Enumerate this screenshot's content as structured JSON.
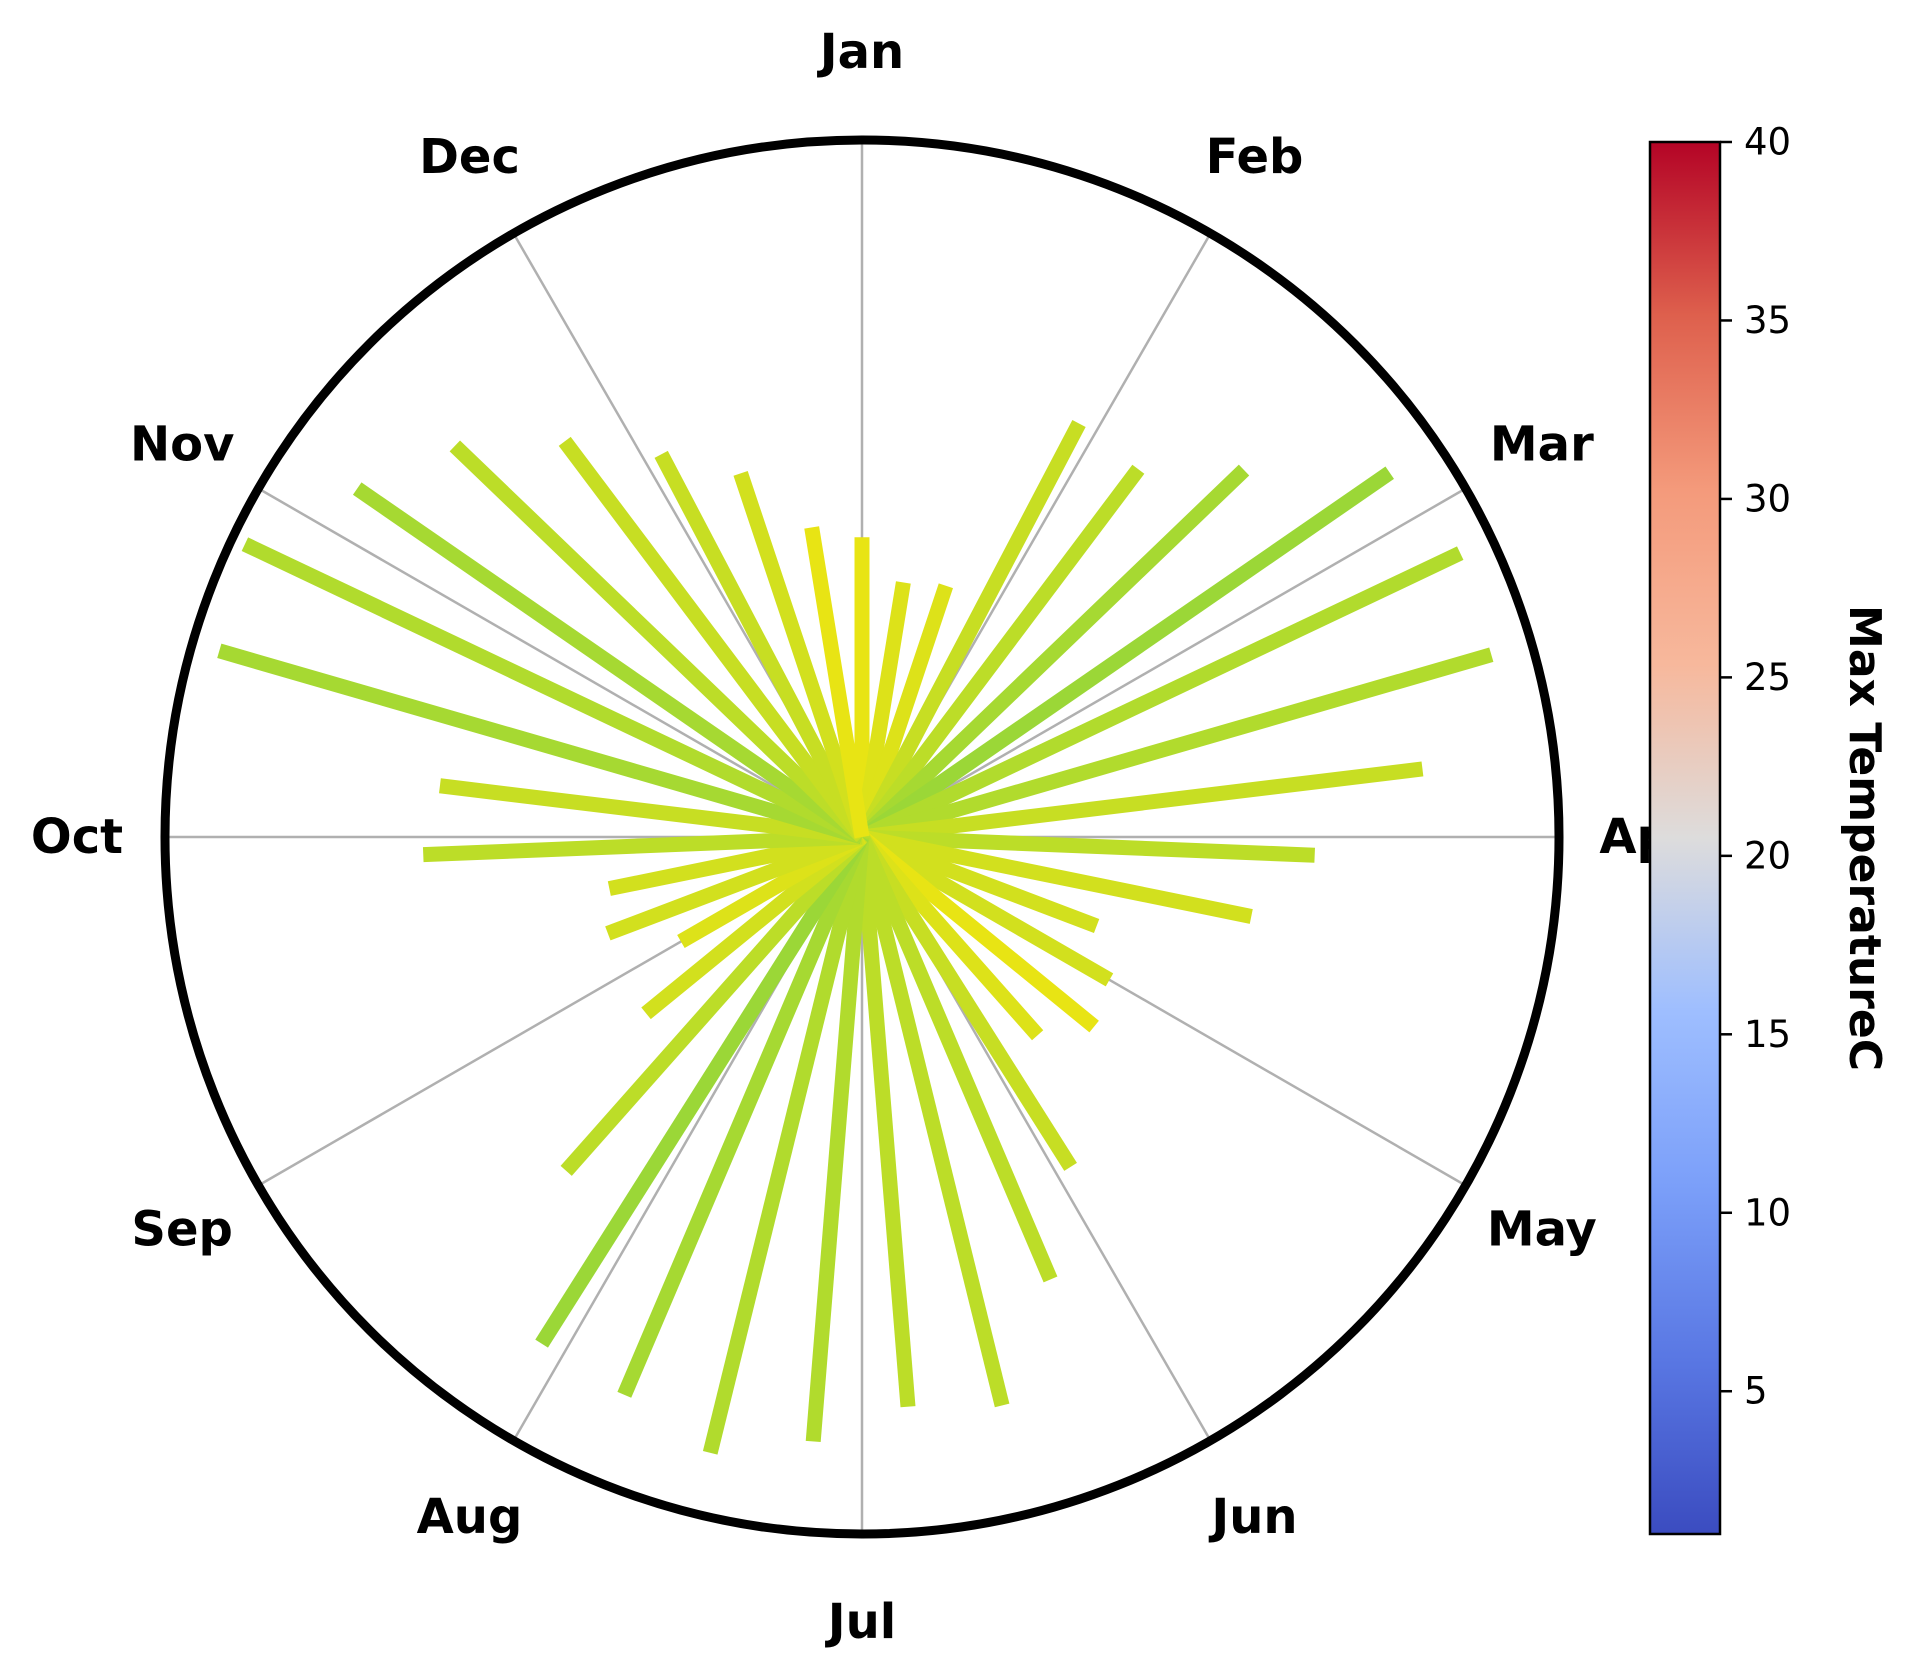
{
  "chart_data": {
    "type": "radial-bar",
    "theta_labels": [
      "Jan",
      "Feb",
      "Mar",
      "Apr",
      "May",
      "Jun",
      "Jul",
      "Aug",
      "Sep",
      "Oct",
      "Nov",
      "Dec"
    ],
    "direction": "clockwise",
    "theta_zero": "top",
    "radial_grid": false,
    "colorbar": {
      "label": "Max TemperatureC",
      "colormap": "coolwarm",
      "vmin": 1,
      "vmax": 40,
      "ticks": [
        5,
        10,
        15,
        20,
        25,
        30,
        35,
        40
      ]
    },
    "spokes": [
      {
        "r": 0.43,
        "t": 21
      },
      {
        "r": 0.37,
        "t": 20
      },
      {
        "r": 0.38,
        "t": 20
      },
      {
        "r": 0.67,
        "t": 18
      },
      {
        "r": 0.66,
        "t": 17
      },
      {
        "r": 0.76,
        "t": 15
      },
      {
        "r": 0.92,
        "t": 14
      },
      {
        "r": 0.95,
        "t": 16
      },
      {
        "r": 0.94,
        "t": 16
      },
      {
        "r": 0.81,
        "t": 18
      },
      {
        "r": 0.65,
        "t": 17
      },
      {
        "r": 0.57,
        "t": 19
      },
      {
        "r": 0.36,
        "t": 19
      },
      {
        "r": 0.41,
        "t": 19
      },
      {
        "r": 0.43,
        "t": 21
      },
      {
        "r": 0.38,
        "t": 20
      },
      {
        "r": 0.56,
        "t": 18
      },
      {
        "r": 0.69,
        "t": 17
      },
      {
        "r": 0.84,
        "t": 17
      },
      {
        "r": 0.82,
        "t": 17
      },
      {
        "r": 0.87,
        "t": 16
      },
      {
        "r": 0.91,
        "t": 16
      },
      {
        "r": 0.87,
        "t": 15
      },
      {
        "r": 0.86,
        "t": 14
      },
      {
        "r": 0.64,
        "t": 17
      },
      {
        "r": 0.4,
        "t": 19
      },
      {
        "r": 0.3,
        "t": 20
      },
      {
        "r": 0.39,
        "t": 19
      },
      {
        "r": 0.37,
        "t": 19
      },
      {
        "r": 0.63,
        "t": 17
      },
      {
        "r": 0.61,
        "t": 18
      },
      {
        "r": 0.96,
        "t": 15
      },
      {
        "r": 0.98,
        "t": 16
      },
      {
        "r": 0.88,
        "t": 15
      },
      {
        "r": 0.81,
        "t": 17
      },
      {
        "r": 0.71,
        "t": 18
      },
      {
        "r": 0.62,
        "t": 18
      },
      {
        "r": 0.55,
        "t": 19
      },
      {
        "r": 0.45,
        "t": 21
      }
    ]
  }
}
